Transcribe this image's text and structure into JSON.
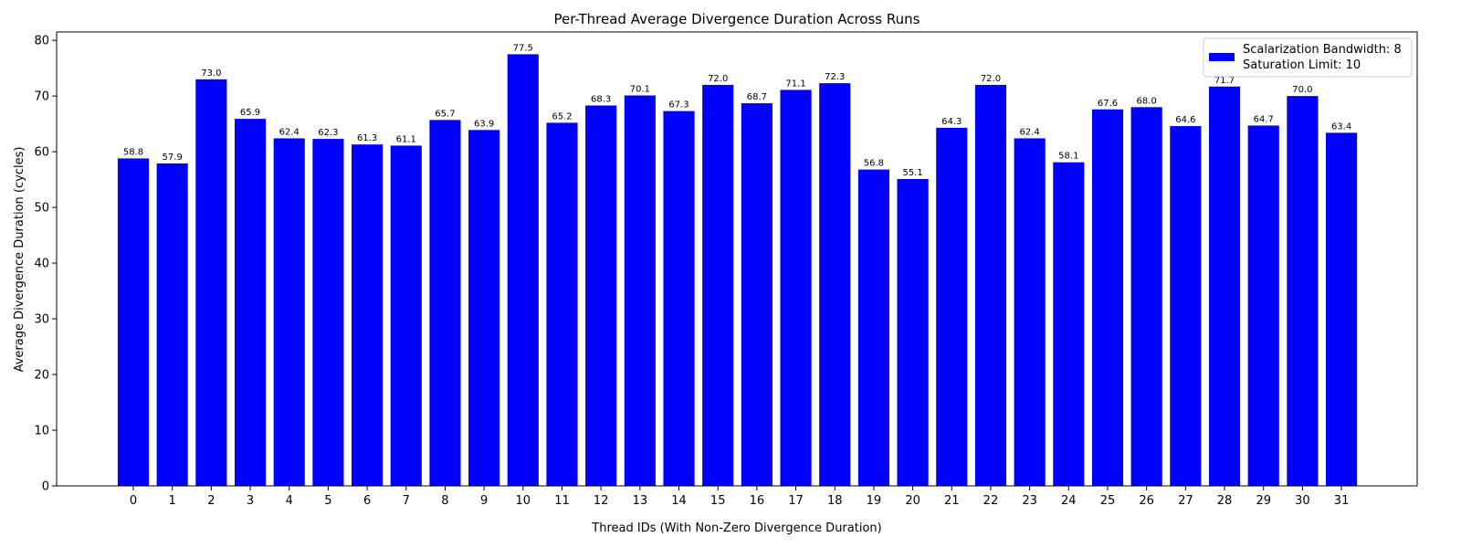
{
  "chart_data": {
    "type": "bar",
    "title": "Per-Thread Average Divergence Duration Across Runs",
    "xlabel": "Thread IDs (With Non-Zero Divergence Duration)",
    "ylabel": "Average Divergence Duration (cycles)",
    "ylim": [
      0,
      81.5
    ],
    "yticks": [
      0,
      10,
      20,
      30,
      40,
      50,
      60,
      70,
      80
    ],
    "grid": false,
    "legend_position": "top-right",
    "categories": [
      "0",
      "1",
      "2",
      "3",
      "4",
      "5",
      "6",
      "7",
      "8",
      "9",
      "10",
      "11",
      "12",
      "13",
      "14",
      "15",
      "16",
      "17",
      "18",
      "19",
      "20",
      "21",
      "22",
      "23",
      "24",
      "25",
      "26",
      "27",
      "28",
      "29",
      "30",
      "31"
    ],
    "series": [
      {
        "name": "Scalarization Bandwidth: 8\nSaturation Limit: 10",
        "legend_lines": [
          "Scalarization Bandwidth: 8",
          "Saturation Limit: 10"
        ],
        "color": "#0000ff",
        "values": [
          58.8,
          57.9,
          73.0,
          65.9,
          62.4,
          62.3,
          61.3,
          61.1,
          65.7,
          63.9,
          77.5,
          65.2,
          68.3,
          70.1,
          67.3,
          72.0,
          68.7,
          71.1,
          72.3,
          56.8,
          55.1,
          64.3,
          72.0,
          62.4,
          58.1,
          67.6,
          68.0,
          64.6,
          71.7,
          64.7,
          70.0,
          63.4
        ],
        "labels": [
          "58.8",
          "57.9",
          "73.0",
          "65.9",
          "62.4",
          "62.3",
          "61.3",
          "61.1",
          "65.7",
          "63.9",
          "77.5",
          "65.2",
          "68.3",
          "70.1",
          "67.3",
          "72.0",
          "68.7",
          "71.1",
          "72.3",
          "56.8",
          "55.1",
          "64.3",
          "72.0",
          "62.4",
          "58.1",
          "67.6",
          "68.0",
          "64.6",
          "71.7",
          "64.7",
          "70.0",
          "63.4"
        ]
      }
    ]
  }
}
